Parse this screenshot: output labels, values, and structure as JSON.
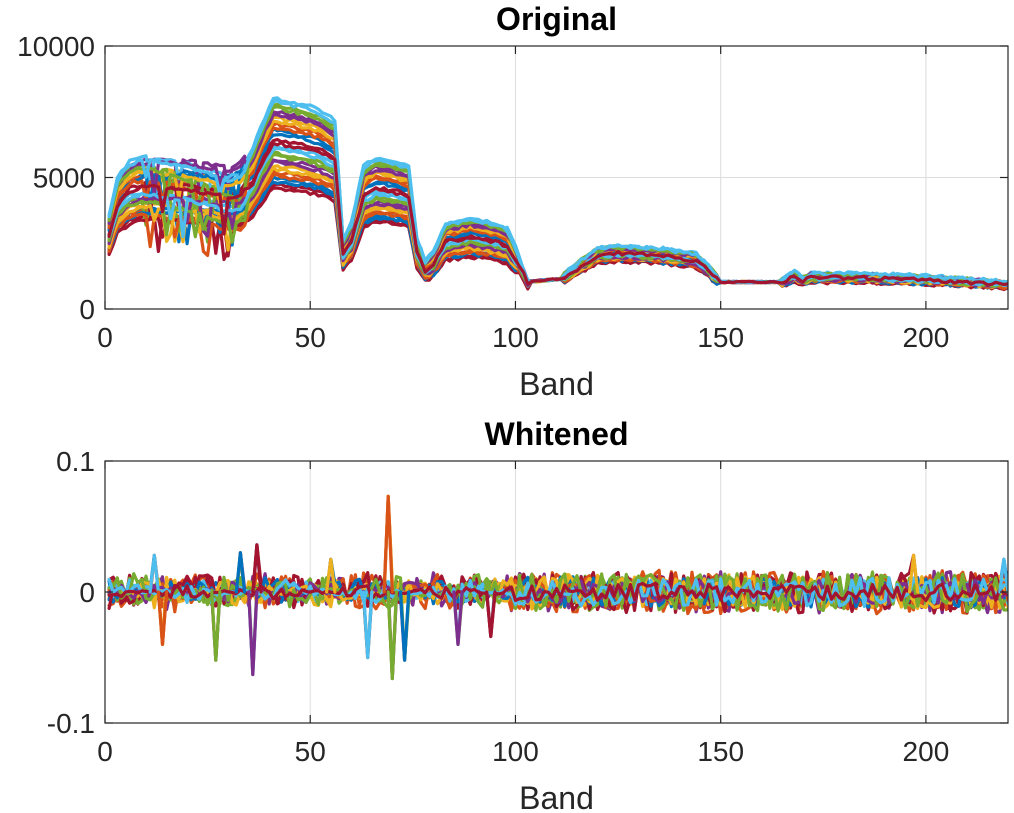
{
  "chart_data": [
    {
      "type": "line",
      "title": "Original",
      "xlabel": "Band",
      "ylabel": "",
      "xlim": [
        0,
        220
      ],
      "ylim": [
        0,
        10000
      ],
      "xticks": [
        0,
        50,
        100,
        150,
        200
      ],
      "yticks": [
        0,
        5000,
        10000
      ],
      "xtick_labels": [
        "0",
        "50",
        "100",
        "150",
        "200"
      ],
      "ytick_labels": [
        "0",
        "5000",
        "10000"
      ],
      "grid": true,
      "colors": [
        "#0072BD",
        "#D95319",
        "#EDB120",
        "#7E2F8E",
        "#77AC30",
        "#4DBEEE",
        "#A2142F"
      ],
      "series_count": 28,
      "series": [
        {
          "x": [
            1,
            3,
            6,
            10,
            15,
            20,
            25,
            30,
            33,
            36,
            38,
            41,
            44,
            47,
            50,
            53,
            56,
            58,
            60,
            63,
            66,
            70,
            74,
            76,
            78,
            80,
            83,
            86,
            89,
            92,
            95,
            98,
            100,
            103,
            106,
            110,
            113,
            116,
            120,
            125,
            130,
            135,
            140,
            144,
            147,
            150,
            155,
            160,
            165,
            168,
            170,
            172,
            175,
            180,
            190,
            200,
            210,
            220
          ],
          "values": [
            3300,
            4600,
            5200,
            5400,
            5300,
            5200,
            5000,
            4800,
            4900,
            5600,
            6400,
            7400,
            7300,
            7200,
            7100,
            6900,
            6600,
            2400,
            3000,
            5000,
            5300,
            5200,
            5000,
            2500,
            1700,
            2000,
            3000,
            3100,
            3200,
            3100,
            3000,
            2800,
            2200,
            1050,
            1080,
            1150,
            1400,
            1800,
            2200,
            2300,
            2250,
            2200,
            2100,
            2000,
            1600,
            1050,
            1050,
            1080,
            1100,
            1350,
            1150,
            1300,
            1280,
            1300,
            1250,
            1200,
            1100,
            1000
          ]
        }
      ]
    },
    {
      "type": "line",
      "title": "Whitened",
      "xlabel": "Band",
      "ylabel": "",
      "xlim": [
        0,
        220
      ],
      "ylim": [
        -0.1,
        0.1
      ],
      "xticks": [
        0,
        50,
        100,
        150,
        200
      ],
      "yticks": [
        -0.1,
        0,
        0.1
      ],
      "xtick_labels": [
        "0",
        "50",
        "100",
        "150",
        "200"
      ],
      "ytick_labels": [
        "-0.1",
        "0",
        "0.1"
      ],
      "grid": true,
      "colors": [
        "#0072BD",
        "#D95319",
        "#EDB120",
        "#7E2F8E",
        "#77AC30",
        "#4DBEEE",
        "#A2142F"
      ],
      "series_count": 28,
      "noise_amplitude": 0.012,
      "spikes": [
        {
          "x": 12,
          "y": 0.028
        },
        {
          "x": 14,
          "y": -0.04
        },
        {
          "x": 27,
          "y": -0.052
        },
        {
          "x": 33,
          "y": 0.03
        },
        {
          "x": 36,
          "y": -0.063
        },
        {
          "x": 37,
          "y": 0.036
        },
        {
          "x": 55,
          "y": 0.025
        },
        {
          "x": 64,
          "y": -0.05
        },
        {
          "x": 69,
          "y": 0.073
        },
        {
          "x": 70,
          "y": -0.066
        },
        {
          "x": 73,
          "y": -0.052
        },
        {
          "x": 86,
          "y": -0.04
        },
        {
          "x": 94,
          "y": -0.034
        },
        {
          "x": 197,
          "y": 0.028
        },
        {
          "x": 219,
          "y": 0.025
        }
      ]
    }
  ]
}
